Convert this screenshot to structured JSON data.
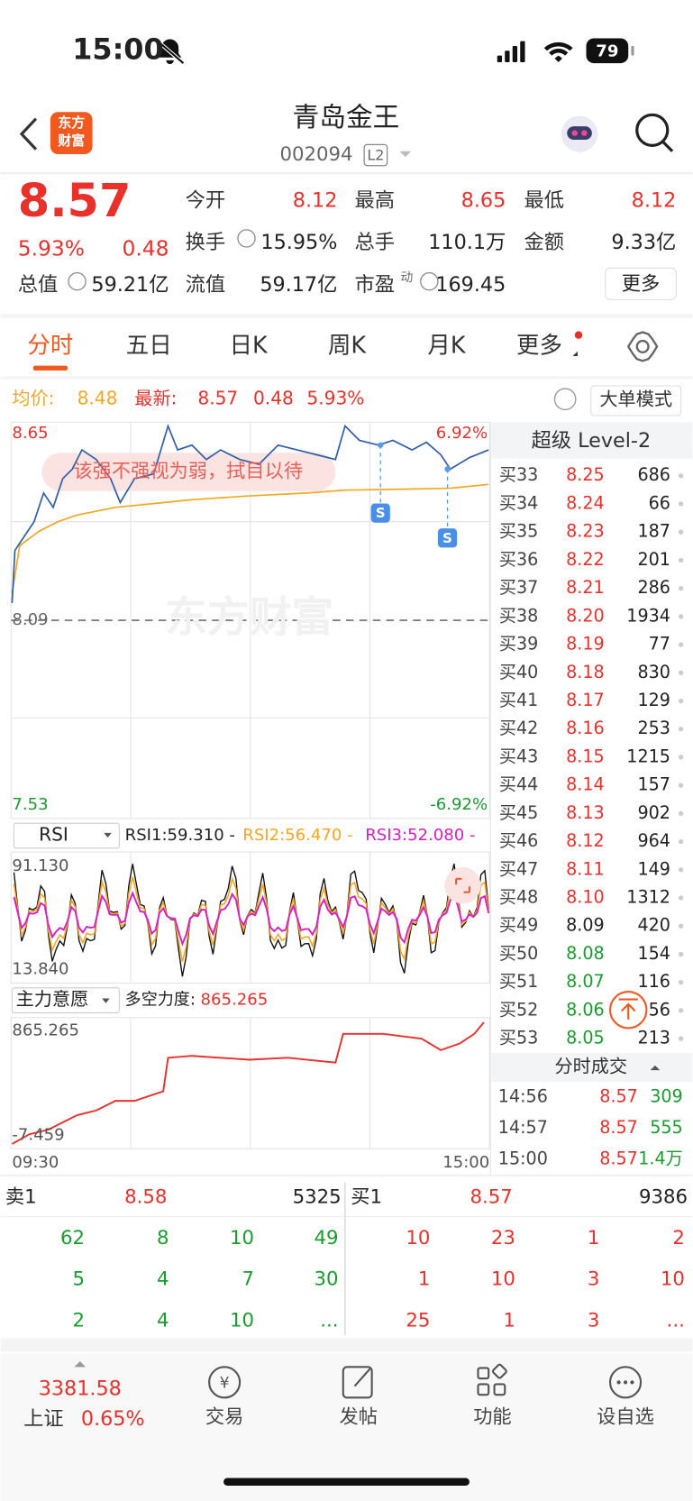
{
  "status": {
    "time": "15:00",
    "battery": "79"
  },
  "header": {
    "logo": [
      "东方",
      "财富"
    ],
    "title": "青岛金王",
    "code": "002094",
    "level": "L2"
  },
  "quote": {
    "price": "8.57",
    "change_pct": "5.93%",
    "change": "0.48",
    "color": "#e8312b",
    "stats": [
      [
        {
          "label": "今开",
          "value": "8.12",
          "color": "#e8312b"
        },
        {
          "label": "最高",
          "value": "8.65",
          "color": "#e8312b"
        },
        {
          "label": "最低",
          "value": "8.12",
          "color": "#e8312b"
        }
      ],
      [
        {
          "label": "换手",
          "value": "15.95%",
          "color": "#222222"
        },
        {
          "label": "总手",
          "value": "110.1万",
          "color": "#222222"
        },
        {
          "label": "金额",
          "value": "9.33亿",
          "color": "#222222"
        }
      ],
      [
        {
          "label": "总值",
          "value": "59.21亿",
          "color": "#222222"
        },
        {
          "label": "流值",
          "value": "59.17亿",
          "color": "#222222"
        },
        {
          "label": "市盈",
          "sup": "动",
          "value": "169.45",
          "color": "#222222"
        }
      ]
    ],
    "more": "更多"
  },
  "tabs": {
    "items": [
      "分时",
      "五日",
      "日K",
      "周K",
      "月K",
      "更多"
    ],
    "active": 0
  },
  "info": {
    "avg_label": "均价:",
    "avg": "8.48",
    "latest_label": "最新:",
    "latest": "8.57",
    "change": "0.48",
    "change_pct": "5.93%",
    "mode": "大单模式"
  },
  "chart": {
    "high": "8.65",
    "prev_close": "8.09",
    "low": "7.53",
    "high_pct": "6.92%",
    "low_pct": "-6.92%",
    "annotation": "该强不强视为弱，拭目以待",
    "watermark": "东方财富",
    "marker": "S"
  },
  "rsi": {
    "name": "RSI",
    "rsi1": "RSI1:59.310 -",
    "rsi2": "RSI2:56.470 -",
    "rsi3": "RSI3:52.080 -",
    "max": "91.130",
    "min": "13.840"
  },
  "main_force": {
    "name": "主力意愿",
    "label": "多空力度:",
    "value": "865.265",
    "max": "865.265",
    "min": "-7.459",
    "time_start": "09:30",
    "time_end": "15:00"
  },
  "level2": {
    "title": "超级 Level-2",
    "rows": [
      {
        "label": "买33",
        "price": "8.25",
        "volume": "686",
        "color": "#e8312b"
      },
      {
        "label": "买34",
        "price": "8.24",
        "volume": "66",
        "color": "#e8312b"
      },
      {
        "label": "买35",
        "price": "8.23",
        "volume": "187",
        "color": "#e8312b"
      },
      {
        "label": "买36",
        "price": "8.22",
        "volume": "201",
        "color": "#e8312b"
      },
      {
        "label": "买37",
        "price": "8.21",
        "volume": "286",
        "color": "#e8312b"
      },
      {
        "label": "买38",
        "price": "8.20",
        "volume": "1934",
        "color": "#e8312b"
      },
      {
        "label": "买39",
        "price": "8.19",
        "volume": "77",
        "color": "#e8312b"
      },
      {
        "label": "买40",
        "price": "8.18",
        "volume": "830",
        "color": "#e8312b"
      },
      {
        "label": "买41",
        "price": "8.17",
        "volume": "129",
        "color": "#e8312b"
      },
      {
        "label": "买42",
        "price": "8.16",
        "volume": "253",
        "color": "#e8312b"
      },
      {
        "label": "买43",
        "price": "8.15",
        "volume": "1215",
        "color": "#e8312b"
      },
      {
        "label": "买44",
        "price": "8.14",
        "volume": "157",
        "color": "#e8312b"
      },
      {
        "label": "买45",
        "price": "8.13",
        "volume": "902",
        "color": "#e8312b"
      },
      {
        "label": "买46",
        "price": "8.12",
        "volume": "964",
        "color": "#e8312b"
      },
      {
        "label": "买47",
        "price": "8.11",
        "volume": "149",
        "color": "#e8312b"
      },
      {
        "label": "买48",
        "price": "8.10",
        "volume": "1312",
        "color": "#e8312b"
      },
      {
        "label": "买49",
        "price": "8.09",
        "volume": "420",
        "color": "#222222"
      },
      {
        "label": "买50",
        "price": "8.08",
        "volume": "154",
        "color": "#1a9c2e"
      },
      {
        "label": "买51",
        "price": "8.07",
        "volume": "116",
        "color": "#1a9c2e"
      },
      {
        "label": "买52",
        "price": "8.06",
        "volume": "56",
        "color": "#1a9c2e"
      },
      {
        "label": "买53",
        "price": "8.05",
        "volume": "213",
        "color": "#1a9c2e"
      }
    ]
  },
  "trades": {
    "title": "分时成交",
    "rows": [
      {
        "time": "14:56",
        "price": "8.57",
        "volume": "309"
      },
      {
        "time": "14:57",
        "price": "8.57",
        "volume": "555"
      },
      {
        "time": "15:00",
        "price": "8.57",
        "volume": "1.4万"
      }
    ]
  },
  "book": {
    "sell": {
      "label": "卖1",
      "price": "8.58",
      "volume": "5325",
      "color": "#1a9c2e",
      "queue": [
        [
          "62",
          "8",
          "10",
          "49"
        ],
        [
          "5",
          "4",
          "7",
          "30"
        ],
        [
          "2",
          "4",
          "10",
          "..."
        ]
      ]
    },
    "buy": {
      "label": "买1",
      "price": "8.57",
      "volume": "9386",
      "color": "#e8312b",
      "queue": [
        [
          "10",
          "23",
          "1",
          "2"
        ],
        [
          "1",
          "10",
          "3",
          "10"
        ],
        [
          "25",
          "1",
          "3",
          "..."
        ]
      ]
    }
  },
  "bottom": {
    "index_value": "3381.58",
    "index_name": "上证",
    "index_pct": "0.65%",
    "nav": [
      "交易",
      "发帖",
      "功能",
      "设自选"
    ]
  }
}
